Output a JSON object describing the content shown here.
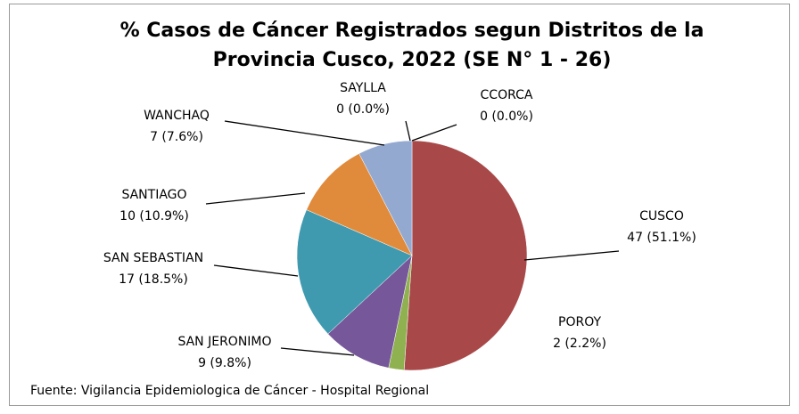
{
  "chart_data": {
    "type": "pie",
    "title": "% Casos de Cáncer Registrados segun Distritos de la Provincia Cusco, 2022 (SE N° 1 - 26)",
    "categories": [
      "CCORCA",
      "CUSCO",
      "POROY",
      "SAN JERONIMO",
      "SAN SEBASTIAN",
      "SANTIAGO",
      "WANCHAQ",
      "SAYLLA"
    ],
    "values": [
      0,
      47,
      2,
      9,
      17,
      10,
      7,
      0
    ],
    "value_labels": [
      "0 (0.0%)",
      "47 (51.1%)",
      "2 (2.2%)",
      "9 (9.8%)",
      "17 (18.5%)",
      "10 (10.9%)",
      "7 (7.6%)",
      "0 (0.0%)"
    ],
    "colors": [
      "#4f81bd",
      "#a84848",
      "#8fb150",
      "#76589a",
      "#3f9aaf",
      "#e08a3c",
      "#94a9d0",
      "#c0504d"
    ],
    "source": "Fuente: Vigilancia Epidemiologica de Cáncer - Hospital Regional"
  }
}
